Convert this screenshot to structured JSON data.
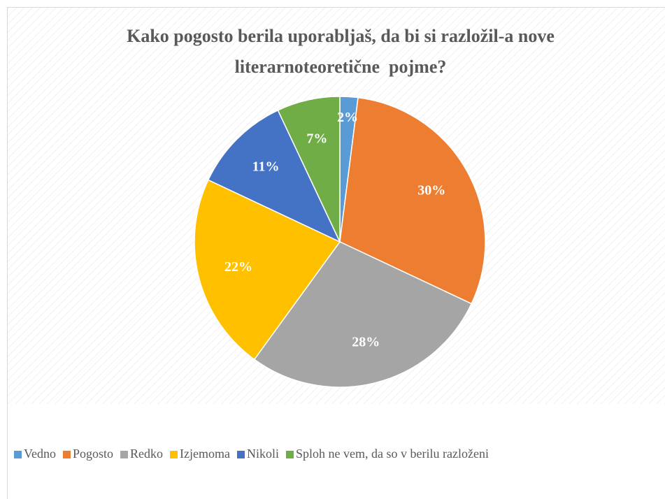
{
  "chart_data": {
    "type": "pie",
    "title": "Kako pogosto berila uporabljaš, da bi si razložil-a nove literarnoteoretične  pojme?",
    "categories": [
      "Vedno",
      "Pogosto",
      "Redko",
      "Izjemoma",
      "Nikoli",
      "Sploh ne vem, da so v berilu razloženi"
    ],
    "values": [
      2,
      30,
      28,
      22,
      11,
      7
    ],
    "value_labels": [
      "2%",
      "30%",
      "28%",
      "22%",
      "11%",
      "7%"
    ],
    "colors": [
      "#5B9BD5",
      "#ED7D31",
      "#A5A5A5",
      "#FFC000",
      "#4472C4",
      "#70AD47"
    ],
    "legend": "bottom"
  }
}
